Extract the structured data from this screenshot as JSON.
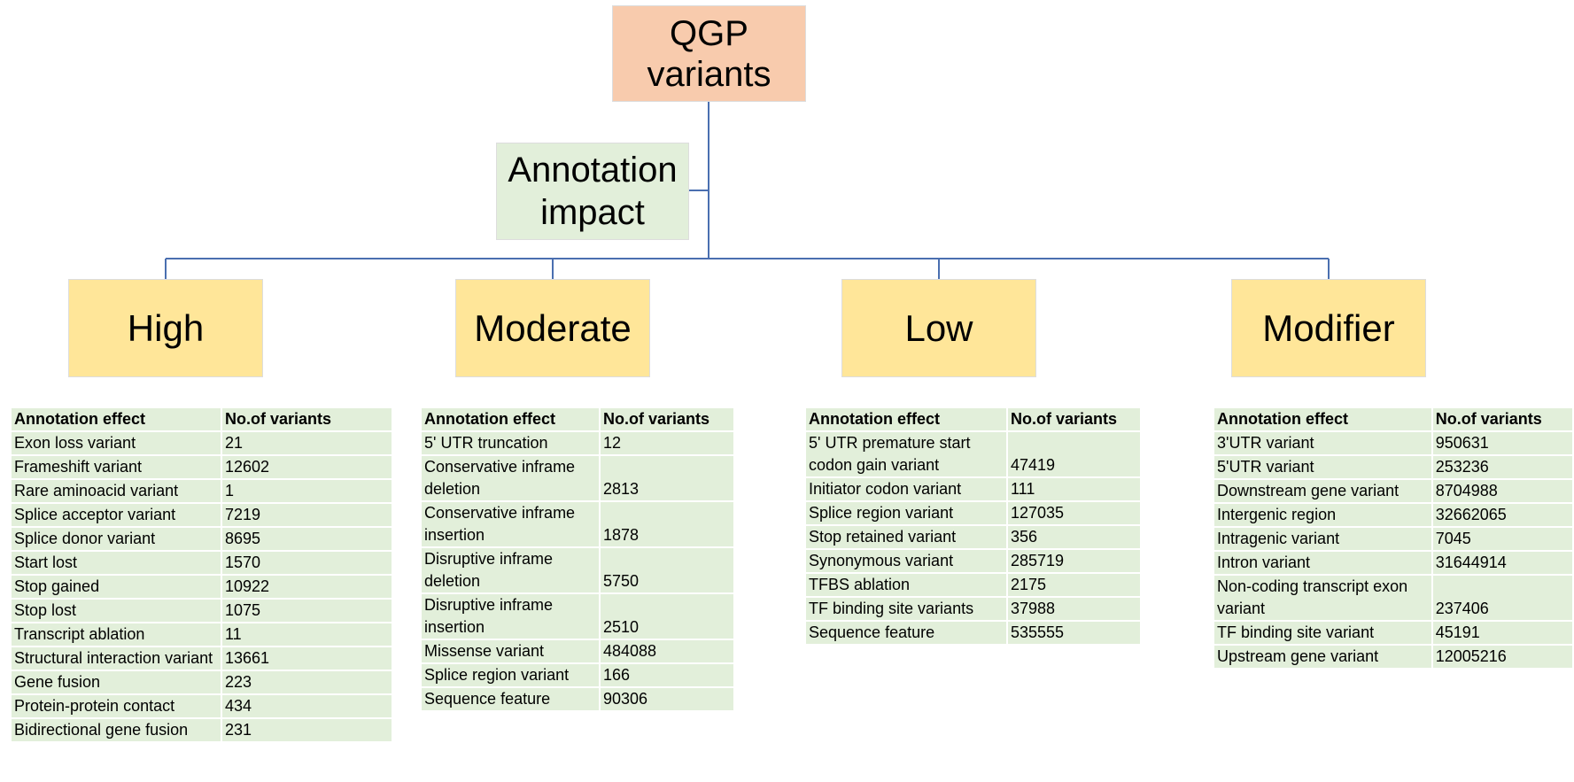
{
  "root": "QGP variants",
  "impact": "Annotation impact",
  "levels": [
    {
      "label": "High",
      "table": {
        "header": [
          "Annotation effect",
          "No.of variants"
        ],
        "rows": [
          [
            "Exon loss variant",
            21
          ],
          [
            "Frameshift variant",
            12602
          ],
          [
            "Rare aminoacid variant",
            1
          ],
          [
            "Splice acceptor variant",
            7219
          ],
          [
            "Splice donor variant",
            8695
          ],
          [
            "Start lost",
            1570
          ],
          [
            "Stop gained",
            10922
          ],
          [
            "Stop lost",
            1075
          ],
          [
            "Transcript ablation",
            11
          ],
          [
            "Structural interaction variant",
            13661
          ],
          [
            "Gene fusion",
            223
          ],
          [
            "Protein-protein contact",
            434
          ],
          [
            "Bidirectional gene fusion",
            231
          ]
        ]
      }
    },
    {
      "label": "Moderate",
      "table": {
        "header": [
          "Annotation effect",
          "No.of variants"
        ],
        "rows": [
          [
            "5' UTR truncation",
            12
          ],
          [
            "Conservative inframe deletion",
            2813
          ],
          [
            "Conservative inframe insertion",
            1878
          ],
          [
            "Disruptive inframe deletion",
            5750
          ],
          [
            "Disruptive inframe insertion",
            2510
          ],
          [
            "Missense variant",
            484088
          ],
          [
            "Splice region variant",
            166
          ],
          [
            "Sequence feature",
            90306
          ]
        ]
      }
    },
    {
      "label": "Low",
      "table": {
        "header": [
          "Annotation effect",
          "No.of variants"
        ],
        "rows": [
          [
            "5' UTR premature start codon gain variant",
            47419
          ],
          [
            "Initiator codon variant",
            111
          ],
          [
            "Splice region variant",
            127035
          ],
          [
            "Stop retained variant",
            356
          ],
          [
            "Synonymous variant",
            285719
          ],
          [
            "TFBS ablation",
            2175
          ],
          [
            "TF binding site variants",
            37988
          ],
          [
            "Sequence feature",
            535555
          ]
        ]
      }
    },
    {
      "label": "Modifier",
      "table": {
        "header": [
          "Annotation effect",
          "No.of variants"
        ],
        "rows": [
          [
            "3'UTR variant",
            950631
          ],
          [
            "5'UTR variant",
            253236
          ],
          [
            "Downstream gene variant",
            8704988
          ],
          [
            "Intergenic region",
            32662065
          ],
          [
            "Intragenic variant",
            7045
          ],
          [
            "Intron variant",
            31644914
          ],
          [
            "Non-coding transcript exon variant",
            237406
          ],
          [
            "TF binding site variant",
            45191
          ],
          [
            "Upstream gene variant",
            12005216
          ]
        ]
      }
    }
  ]
}
